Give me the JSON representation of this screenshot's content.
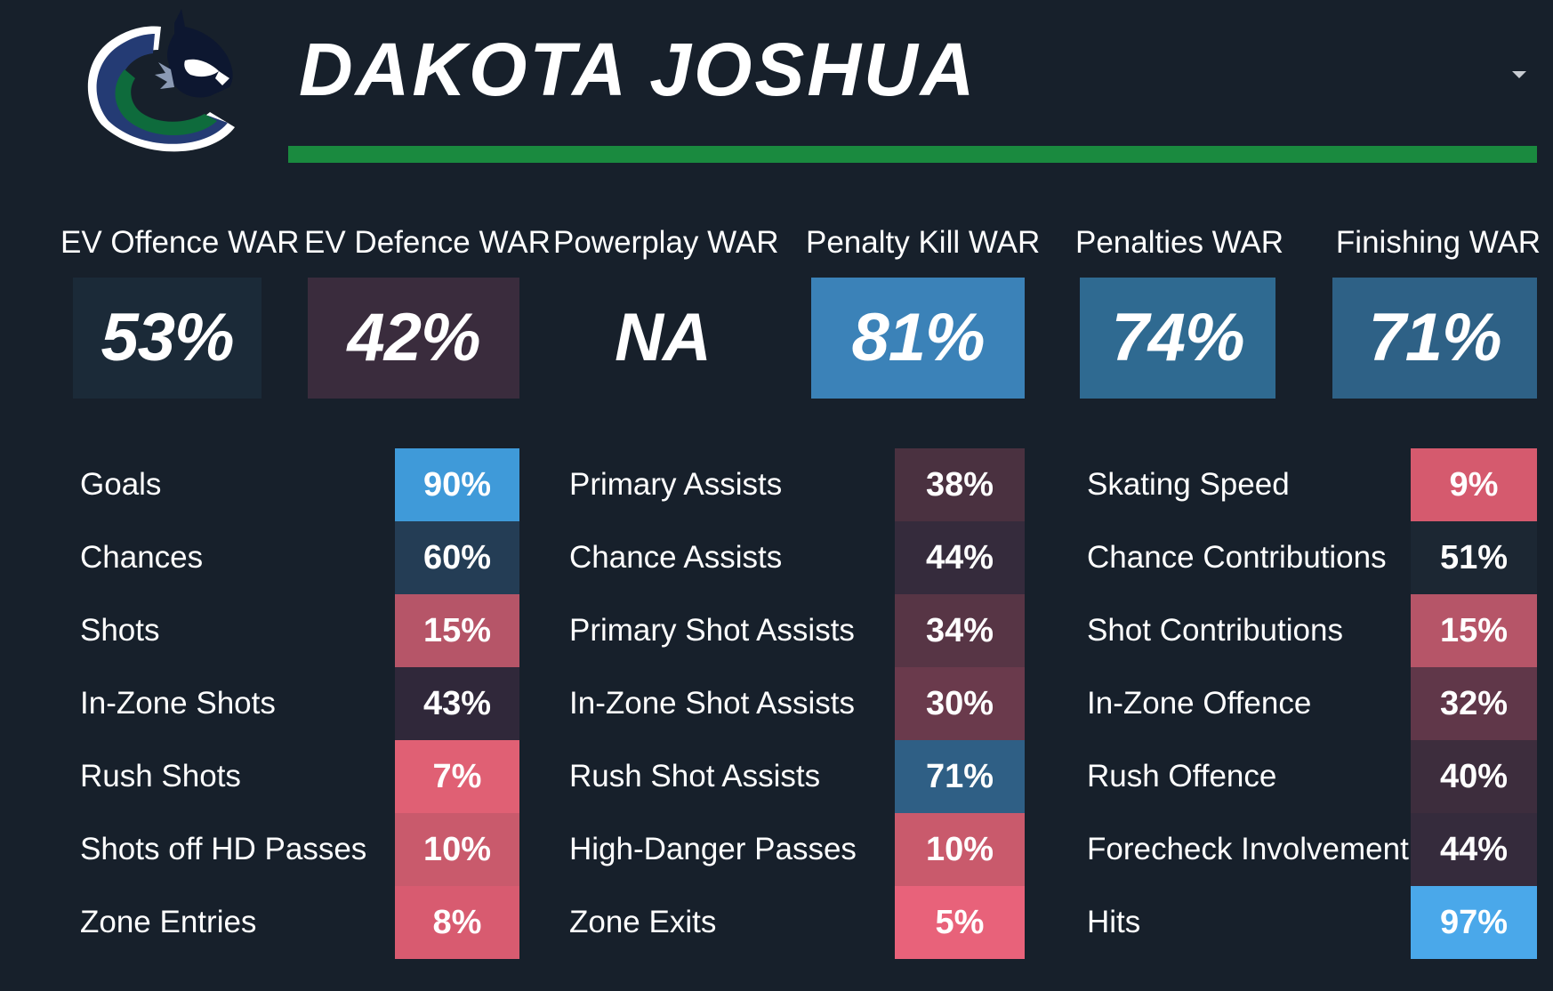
{
  "player": {
    "name": "DAKOTA JOSHUA"
  },
  "icons": {
    "logo": "orca-team-logo-icon",
    "dropdown": "caret-down-icon"
  },
  "colors": {
    "accent_bar": "#1a8a3f",
    "background": "#17202b"
  },
  "war_cards": [
    {
      "label": "EV Offence WAR",
      "value": "53%",
      "color": "#1b2a38"
    },
    {
      "label": "EV Defence WAR",
      "value": "42%",
      "color": "#3a2c3d"
    },
    {
      "label": "Powerplay WAR",
      "value": "NA",
      "color": "#17202b"
    },
    {
      "label": "Penalty Kill WAR",
      "value": "81%",
      "color": "#3b82b8"
    },
    {
      "label": "Penalties WAR",
      "value": "74%",
      "color": "#2f6a91"
    },
    {
      "label": "Finishing WAR",
      "value": "71%",
      "color": "#2e6186"
    }
  ],
  "stat_columns": [
    [
      {
        "label": "Goals",
        "value": "90%",
        "color": "#3f9ad9"
      },
      {
        "label": "Chances",
        "value": "60%",
        "color": "#243d55"
      },
      {
        "label": "Shots",
        "value": "15%",
        "color": "#b65568"
      },
      {
        "label": "In-Zone Shots",
        "value": "43%",
        "color": "#30283a"
      },
      {
        "label": "Rush Shots",
        "value": "7%",
        "color": "#e06074"
      },
      {
        "label": "Shots off HD Passes",
        "value": "10%",
        "color": "#c95a6c"
      },
      {
        "label": "Zone Entries",
        "value": "8%",
        "color": "#d85b70"
      }
    ],
    [
      {
        "label": "Primary Assists",
        "value": "38%",
        "color": "#4a3140"
      },
      {
        "label": "Chance Assists",
        "value": "44%",
        "color": "#352b3c"
      },
      {
        "label": "Primary Shot Assists",
        "value": "34%",
        "color": "#573545"
      },
      {
        "label": "In-Zone Shot Assists",
        "value": "30%",
        "color": "#6a3a4c"
      },
      {
        "label": "Rush Shot Assists",
        "value": "71%",
        "color": "#2f5f85"
      },
      {
        "label": "High-Danger Passes",
        "value": "10%",
        "color": "#c95a6c"
      },
      {
        "label": "Zone Exits",
        "value": "5%",
        "color": "#e8627a"
      }
    ],
    [
      {
        "label": "Skating Speed",
        "value": "9%",
        "color": "#d55a6e"
      },
      {
        "label": "Chance Contributions",
        "value": "51%",
        "color": "#1c2733"
      },
      {
        "label": "Shot Contributions",
        "value": "15%",
        "color": "#b65568"
      },
      {
        "label": "In-Zone Offence",
        "value": "32%",
        "color": "#603749"
      },
      {
        "label": "Rush Offence",
        "value": "40%",
        "color": "#3d2d3d"
      },
      {
        "label": "Forecheck Involvement",
        "value": "44%",
        "color": "#352b3c"
      },
      {
        "label": "Hits",
        "value": "97%",
        "color": "#4aa8ea"
      }
    ]
  ]
}
